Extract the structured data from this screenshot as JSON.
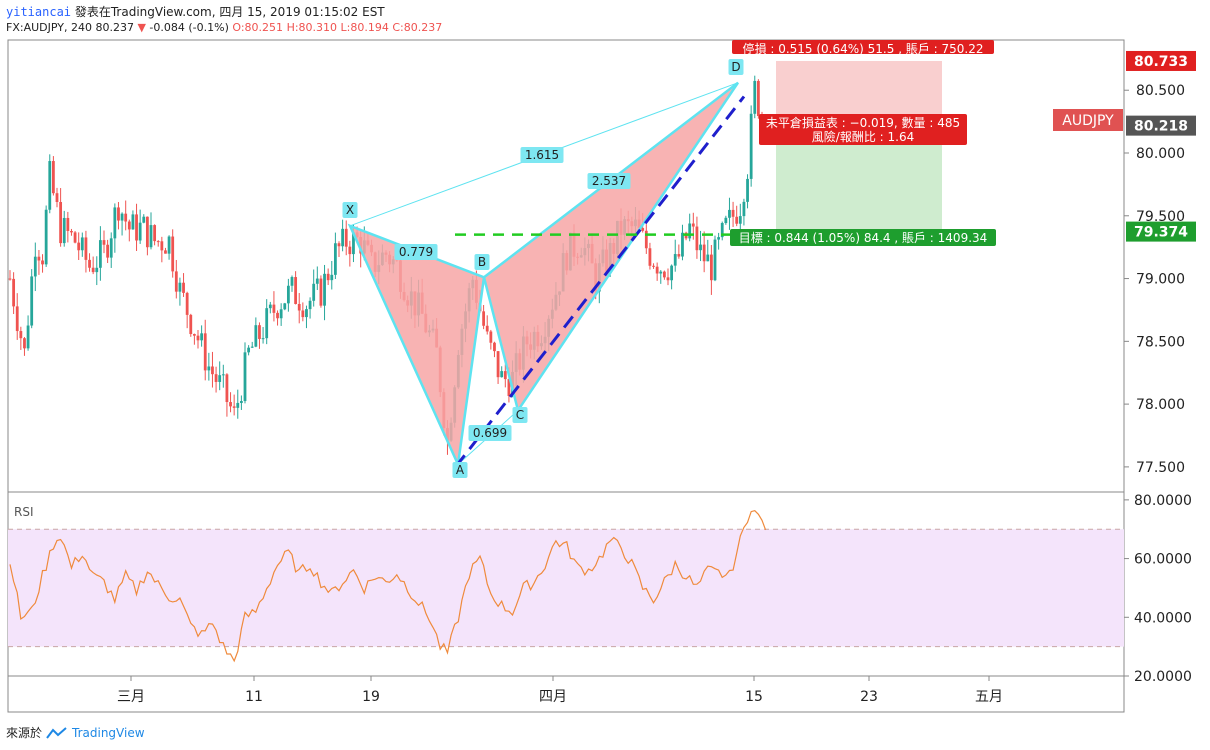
{
  "header": {
    "author": "yitiancai",
    "published_text": "發表在TradingView.com, 四月 15, 2019 01:15:02 EST",
    "symbol_line": "FX:AUDJPY, 240 80.237",
    "change": "-0.084 (-0.1%)",
    "ohlc": {
      "o": "O:80.251",
      "h": "H:80.310",
      "l": "L:80.194",
      "c": "C:80.237"
    }
  },
  "footer": {
    "prefix": "來源於",
    "brand": "TradingView"
  },
  "colors": {
    "up": "#26a69a",
    "down": "#ef5350",
    "pattern_fill": "#f7a6a6",
    "pattern_edge": "#5ee3f0",
    "trend": "#1f1fcc",
    "target_line": "#22cc22",
    "stop_zone": "#f9cfcf",
    "target_zone": "#cfeccf",
    "rsi_band": "#f4e4fb",
    "rsi_line": "#ef8a3c"
  },
  "chart_data": {
    "type": "candlestick",
    "symbol_badge": "AUDJPY",
    "price_axis": {
      "ticks": [
        "80.500",
        "80.000",
        "79.500",
        "79.000",
        "78.500",
        "78.000",
        "77.500"
      ],
      "range": [
        77.3,
        80.9
      ]
    },
    "time_axis": {
      "ticks": [
        "三月",
        "11",
        "19",
        "四月",
        "15",
        "23",
        "五月"
      ]
    },
    "price_labels": [
      {
        "value": "80.733",
        "kind": "stop"
      },
      {
        "value": "80.218",
        "kind": "current"
      },
      {
        "value": "79.374",
        "kind": "target"
      }
    ],
    "pattern_points": [
      {
        "label": "X",
        "price": 79.42
      },
      {
        "label": "A",
        "price": 77.52
      },
      {
        "label": "B",
        "price": 79.01
      },
      {
        "label": "C",
        "price": 77.95
      },
      {
        "label": "D",
        "price": 80.56
      }
    ],
    "ratios": [
      "1.615",
      "0.779",
      "2.537",
      "0.699"
    ],
    "position": {
      "stop_text": "停損 : 0.515 (0.64%) 51.5 , 賬戶 : 750.22",
      "pnl_line1": "未平倉損益表 : −0.019, 數量 : 485",
      "pnl_line2": "風險/報酬比 : 1.64",
      "target_text": "目標 : 0.844 (1.05%) 84.4 , 賬戶 : 1409.34",
      "entry": 80.218,
      "stop": 80.733,
      "target": 79.374
    },
    "candles": {
      "anchors": [
        [
          0,
          79.0
        ],
        [
          4,
          78.4
        ],
        [
          7,
          79.3
        ],
        [
          9,
          79.2
        ],
        [
          11,
          79.8
        ],
        [
          14,
          79.4
        ],
        [
          18,
          79.3
        ],
        [
          22,
          79.1
        ],
        [
          26,
          79.2
        ],
        [
          30,
          79.6
        ],
        [
          33,
          79.4
        ],
        [
          37,
          79.4
        ],
        [
          40,
          79.3
        ],
        [
          44,
          79.3
        ],
        [
          47,
          78.9
        ],
        [
          51,
          78.6
        ],
        [
          55,
          78.3
        ],
        [
          59,
          78.1
        ],
        [
          62,
          77.9
        ],
        [
          66,
          78.4
        ],
        [
          70,
          78.6
        ],
        [
          74,
          78.8
        ],
        [
          78,
          78.9
        ],
        [
          82,
          78.8
        ],
        [
          86,
          78.9
        ],
        [
          90,
          79.2
        ],
        [
          93,
          79.3
        ],
        [
          97,
          79.3
        ],
        [
          100,
          79.1
        ],
        [
          104,
          79.2
        ],
        [
          107,
          79.1
        ],
        [
          110,
          78.9
        ],
        [
          114,
          78.7
        ],
        [
          118,
          78.4
        ],
        [
          121,
          77.7
        ],
        [
          124,
          78.5
        ],
        [
          128,
          79.0
        ],
        [
          132,
          78.5
        ],
        [
          136,
          78.2
        ],
        [
          139,
          78.2
        ],
        [
          143,
          78.5
        ],
        [
          147,
          78.6
        ],
        [
          151,
          78.9
        ],
        [
          154,
          79.2
        ],
        [
          158,
          79.3
        ],
        [
          162,
          79.0
        ],
        [
          166,
          79.2
        ],
        [
          169,
          79.4
        ],
        [
          173,
          79.4
        ],
        [
          177,
          79.2
        ],
        [
          180,
          79.1
        ],
        [
          184,
          79.1
        ],
        [
          188,
          79.4
        ],
        [
          191,
          79.2
        ],
        [
          194,
          79.1
        ],
        [
          198,
          79.4
        ],
        [
          202,
          79.6
        ],
        [
          204,
          79.9
        ],
        [
          206,
          80.5
        ],
        [
          208,
          80.3
        ]
      ],
      "count": 209
    },
    "rsi": {
      "label": "RSI",
      "axis_ticks": [
        "80.0000",
        "60.0000",
        "40.0000",
        "20.0000"
      ],
      "band": [
        30,
        70
      ],
      "range": [
        20,
        82
      ],
      "anchors": [
        [
          0,
          60
        ],
        [
          3,
          40
        ],
        [
          6,
          42
        ],
        [
          9,
          54
        ],
        [
          12,
          65
        ],
        [
          14,
          68
        ],
        [
          17,
          57
        ],
        [
          20,
          62
        ],
        [
          23,
          54
        ],
        [
          26,
          52
        ],
        [
          29,
          46
        ],
        [
          32,
          54
        ],
        [
          35,
          49
        ],
        [
          38,
          56
        ],
        [
          41,
          51
        ],
        [
          44,
          47
        ],
        [
          47,
          46
        ],
        [
          50,
          37
        ],
        [
          53,
          34
        ],
        [
          56,
          38
        ],
        [
          59,
          30
        ],
        [
          62,
          25
        ],
        [
          65,
          40
        ],
        [
          68,
          42
        ],
        [
          71,
          50
        ],
        [
          74,
          58
        ],
        [
          77,
          62
        ],
        [
          80,
          55
        ],
        [
          83,
          58
        ],
        [
          86,
          52
        ],
        [
          89,
          48
        ],
        [
          92,
          52
        ],
        [
          95,
          56
        ],
        [
          98,
          50
        ],
        [
          101,
          54
        ],
        [
          104,
          52
        ],
        [
          107,
          55
        ],
        [
          110,
          50
        ],
        [
          113,
          45
        ],
        [
          116,
          40
        ],
        [
          119,
          30
        ],
        [
          121,
          28
        ],
        [
          124,
          40
        ],
        [
          127,
          55
        ],
        [
          130,
          60
        ],
        [
          133,
          48
        ],
        [
          136,
          44
        ],
        [
          139,
          42
        ],
        [
          142,
          50
        ],
        [
          145,
          52
        ],
        [
          148,
          58
        ],
        [
          151,
          66
        ],
        [
          154,
          64
        ],
        [
          157,
          57
        ],
        [
          160,
          56
        ],
        [
          163,
          60
        ],
        [
          166,
          66
        ],
        [
          169,
          64
        ],
        [
          172,
          58
        ],
        [
          175,
          50
        ],
        [
          178,
          46
        ],
        [
          181,
          52
        ],
        [
          184,
          58
        ],
        [
          187,
          54
        ],
        [
          190,
          50
        ],
        [
          193,
          56
        ],
        [
          196,
          55
        ],
        [
          199,
          54
        ],
        [
          201,
          62
        ],
        [
          203,
          70
        ],
        [
          205,
          78
        ],
        [
          207,
          74
        ],
        [
          209,
          71
        ]
      ]
    }
  }
}
